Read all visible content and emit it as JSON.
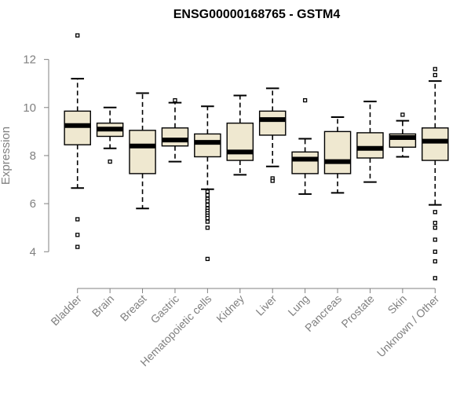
{
  "chart_data": {
    "type": "boxplot",
    "title": "ENSG00000168765 - GSTM4",
    "xlabel": "",
    "ylabel": "Expression",
    "ylim": [
      2.7,
      13.1
    ],
    "yticks": [
      4,
      6,
      8,
      10,
      12
    ],
    "box_color": "#efe8d0",
    "categories": [
      "Bladder",
      "Brain",
      "Breast",
      "Gastric",
      "Hematopoietic cells",
      "Kidney",
      "Liver",
      "Lung",
      "Pancreas",
      "Prostate",
      "Skin",
      "Unknown / Other"
    ],
    "boxes": [
      {
        "min": 6.65,
        "q1": 8.45,
        "median": 9.25,
        "q3": 9.85,
        "max": 11.2,
        "outliers": [
          13.0,
          5.35,
          4.7,
          4.2
        ]
      },
      {
        "min": 8.3,
        "q1": 8.8,
        "median": 9.1,
        "q3": 9.35,
        "max": 10.0,
        "outliers": [
          7.75
        ]
      },
      {
        "min": 5.8,
        "q1": 7.25,
        "median": 8.4,
        "q3": 9.05,
        "max": 10.6,
        "outliers": []
      },
      {
        "min": 7.75,
        "q1": 8.4,
        "median": 8.65,
        "q3": 9.15,
        "max": 10.2,
        "outliers": [
          10.3
        ]
      },
      {
        "min": 6.6,
        "q1": 7.95,
        "median": 8.55,
        "q3": 8.9,
        "max": 10.05,
        "outliers": [
          6.5,
          6.35,
          6.2,
          6.1,
          5.95,
          5.8,
          5.7,
          5.6,
          5.5,
          5.4,
          5.25,
          5.0,
          3.7
        ]
      },
      {
        "min": 7.2,
        "q1": 7.8,
        "median": 8.15,
        "q3": 9.35,
        "max": 10.5,
        "outliers": []
      },
      {
        "min": 7.55,
        "q1": 8.85,
        "median": 9.5,
        "q3": 9.85,
        "max": 10.8,
        "outliers": [
          7.05,
          6.95
        ]
      },
      {
        "min": 6.4,
        "q1": 7.25,
        "median": 7.85,
        "q3": 8.15,
        "max": 8.7,
        "outliers": [
          10.3
        ]
      },
      {
        "min": 6.45,
        "q1": 7.25,
        "median": 7.75,
        "q3": 9.0,
        "max": 9.6,
        "outliers": []
      },
      {
        "min": 6.9,
        "q1": 7.9,
        "median": 8.3,
        "q3": 8.95,
        "max": 10.25,
        "outliers": []
      },
      {
        "min": 7.95,
        "q1": 8.35,
        "median": 8.75,
        "q3": 8.9,
        "max": 9.45,
        "outliers": [
          9.7
        ]
      },
      {
        "min": 5.95,
        "q1": 7.8,
        "median": 8.6,
        "q3": 9.15,
        "max": 11.1,
        "outliers": [
          11.6,
          11.35,
          5.65,
          5.2,
          5.0,
          4.5,
          4.0,
          3.6,
          2.9
        ]
      }
    ]
  }
}
